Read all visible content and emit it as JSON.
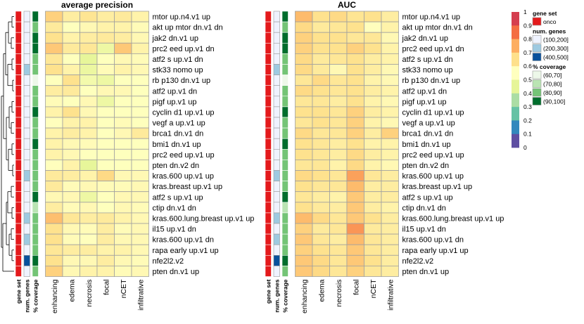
{
  "chart_data": {
    "type": "heatmap",
    "rows": [
      "mtor up.n4.v1 up",
      "akt up mtor dn.v1 dn",
      "jak2 dn.v1 up",
      "prc2 eed up.v1 dn",
      "atf2 s up.v1 dn",
      "stk33 nomo up",
      "rb p130 dn.v1 up",
      "atf2 up.v1 dn",
      "pigf up.v1 up",
      "cyclin d1 up.v1 up",
      "vegf a up.v1 up",
      "brca1 dn.v1 dn",
      "bmi1 dn.v1 up",
      "prc2 eed up.v1 up",
      "pten dn.v2 dn",
      "kras.600 up.v1 up",
      "kras.breast up.v1 up",
      "atf2 s up.v1 up",
      "ctip dn.v1 dn",
      "kras.600.lung.breast up.v1 up",
      "il15 up.v1 dn",
      "kras.600 up.v1 dn",
      "rapa early up.v1 up",
      "nfe2l2.v2",
      "pten dn.v1 up"
    ],
    "columns": [
      "enhancing",
      "edema",
      "necrosis",
      "focal",
      "nCET",
      "infiltrative"
    ],
    "annotation_columns": [
      "gene set",
      "num. genes",
      "% coverage"
    ],
    "annotations": {
      "gene_set": [
        "onco",
        "onco",
        "onco",
        "onco",
        "onco",
        "onco",
        "onco",
        "onco",
        "onco",
        "onco",
        "onco",
        "onco",
        "onco",
        "onco",
        "onco",
        "onco",
        "onco",
        "onco",
        "onco",
        "onco",
        "onco",
        "onco",
        "onco",
        "onco",
        "onco"
      ],
      "num_genes": [
        "(100,200]",
        "(100,200]",
        "(100,200]",
        "(100,200]",
        "(100,200]",
        "(200,300]",
        "(100,200]",
        "(100,200]",
        "(100,200]",
        "(100,200]",
        "(100,200]",
        "(100,200]",
        "(100,200]",
        "(100,200]",
        "(100,200]",
        "(200,300]",
        "(100,200]",
        "(100,200]",
        "(100,200]",
        "(200,300]",
        "(100,200]",
        "(200,300]",
        "(100,200]",
        "(400,500]",
        "(100,200]"
      ],
      "coverage": [
        "(90,100]",
        "(80,90]",
        "(90,100]",
        "(90,100]",
        "(80,90]",
        "(80,90]",
        "(60,70]",
        "(80,90]",
        "(80,90]",
        "(90,100]",
        "(80,90]",
        "(80,90]",
        "(90,100]",
        "(80,90]",
        "(80,90]",
        "(80,90]",
        "(80,90]",
        "(90,100]",
        "(70,80]",
        "(80,90]",
        "(80,90]",
        "(80,90]",
        "(80,90]",
        "(90,100]",
        "(80,90]"
      ]
    },
    "panels": [
      {
        "title": "average precision",
        "values": [
          [
            0.7,
            0.62,
            0.65,
            0.62,
            0.63,
            0.6
          ],
          [
            0.63,
            0.55,
            0.58,
            0.6,
            0.6,
            0.57
          ],
          [
            0.66,
            0.6,
            0.62,
            0.63,
            0.62,
            0.58
          ],
          [
            0.72,
            0.63,
            0.64,
            0.48,
            0.72,
            0.6
          ],
          [
            0.64,
            0.55,
            0.45,
            0.55,
            0.58,
            0.57
          ],
          [
            0.66,
            0.6,
            0.47,
            0.57,
            0.6,
            0.58
          ],
          [
            0.55,
            0.66,
            0.5,
            0.48,
            0.55,
            0.55
          ],
          [
            0.62,
            0.63,
            0.55,
            0.58,
            0.58,
            0.55
          ],
          [
            0.57,
            0.55,
            0.58,
            0.48,
            0.55,
            0.55
          ],
          [
            0.6,
            0.66,
            0.58,
            0.55,
            0.55,
            0.55
          ],
          [
            0.56,
            0.6,
            0.6,
            0.55,
            0.57,
            0.55
          ],
          [
            0.6,
            0.62,
            0.6,
            0.55,
            0.58,
            0.63
          ],
          [
            0.6,
            0.58,
            0.57,
            0.55,
            0.55,
            0.55
          ],
          [
            0.6,
            0.58,
            0.55,
            0.55,
            0.55,
            0.55
          ],
          [
            0.56,
            0.6,
            0.45,
            0.55,
            0.55,
            0.55
          ],
          [
            0.63,
            0.62,
            0.6,
            0.68,
            0.58,
            0.58
          ],
          [
            0.63,
            0.57,
            0.58,
            0.57,
            0.57,
            0.58
          ],
          [
            0.58,
            0.58,
            0.48,
            0.55,
            0.58,
            0.58
          ],
          [
            0.62,
            0.57,
            0.58,
            0.55,
            0.58,
            0.57
          ],
          [
            0.74,
            0.64,
            0.62,
            0.63,
            0.6,
            0.58
          ],
          [
            0.66,
            0.58,
            0.57,
            0.62,
            0.57,
            0.58
          ],
          [
            0.66,
            0.57,
            0.56,
            0.62,
            0.58,
            0.58
          ],
          [
            0.64,
            0.62,
            0.62,
            0.6,
            0.6,
            0.58
          ],
          [
            0.66,
            0.58,
            0.58,
            0.62,
            0.58,
            0.57
          ],
          [
            0.7,
            0.58,
            0.6,
            0.6,
            0.57,
            0.58
          ]
        ]
      },
      {
        "title": "AUC",
        "values": [
          [
            0.75,
            0.66,
            0.68,
            0.65,
            0.66,
            0.62
          ],
          [
            0.68,
            0.63,
            0.64,
            0.66,
            0.56,
            0.6
          ],
          [
            0.7,
            0.66,
            0.66,
            0.64,
            0.64,
            0.58
          ],
          [
            0.7,
            0.66,
            0.66,
            0.7,
            0.66,
            0.6
          ],
          [
            0.68,
            0.63,
            0.64,
            0.66,
            0.62,
            0.6
          ],
          [
            0.68,
            0.63,
            0.58,
            0.66,
            0.62,
            0.58
          ],
          [
            0.64,
            0.68,
            0.64,
            0.66,
            0.6,
            0.58
          ],
          [
            0.68,
            0.66,
            0.64,
            0.66,
            0.62,
            0.6
          ],
          [
            0.64,
            0.64,
            0.62,
            0.66,
            0.6,
            0.58
          ],
          [
            0.66,
            0.66,
            0.64,
            0.7,
            0.62,
            0.6
          ],
          [
            0.64,
            0.66,
            0.64,
            0.7,
            0.6,
            0.58
          ],
          [
            0.68,
            0.64,
            0.64,
            0.7,
            0.62,
            0.7
          ],
          [
            0.66,
            0.64,
            0.62,
            0.66,
            0.6,
            0.6
          ],
          [
            0.66,
            0.64,
            0.62,
            0.68,
            0.62,
            0.6
          ],
          [
            0.64,
            0.64,
            0.6,
            0.68,
            0.6,
            0.58
          ],
          [
            0.68,
            0.66,
            0.64,
            0.8,
            0.64,
            0.62
          ],
          [
            0.66,
            0.64,
            0.64,
            0.75,
            0.62,
            0.62
          ],
          [
            0.64,
            0.62,
            0.6,
            0.72,
            0.62,
            0.62
          ],
          [
            0.66,
            0.63,
            0.62,
            0.72,
            0.62,
            0.6
          ],
          [
            0.75,
            0.68,
            0.64,
            0.72,
            0.66,
            0.62
          ],
          [
            0.7,
            0.63,
            0.64,
            0.82,
            0.63,
            0.62
          ],
          [
            0.72,
            0.64,
            0.62,
            0.75,
            0.64,
            0.62
          ],
          [
            0.7,
            0.66,
            0.64,
            0.72,
            0.64,
            0.62
          ],
          [
            0.72,
            0.68,
            0.64,
            0.72,
            0.66,
            0.62
          ],
          [
            0.72,
            0.68,
            0.64,
            0.7,
            0.64,
            0.62
          ]
        ]
      }
    ],
    "color_scale": {
      "ticks": [
        1,
        0.9,
        0.8,
        0.7,
        0.6,
        0.5,
        0.4,
        0.3,
        0.2,
        0.1,
        0
      ],
      "colors": [
        "#d53e4f",
        "#f46d43",
        "#fdae61",
        "#fee08b",
        "#ffffbf",
        "#e6f598",
        "#abdda4",
        "#66c2a5",
        "#3288bd",
        "#5e4fa2"
      ]
    },
    "legends": {
      "gene_set": {
        "title": "gene set",
        "items": [
          {
            "label": "onco",
            "color": "#e41a1c"
          }
        ]
      },
      "num_genes": {
        "title": "num. genes",
        "items": [
          {
            "label": "(100,200]",
            "color": "#eff3ff"
          },
          {
            "label": "(200,300]",
            "color": "#9ecae1"
          },
          {
            "label": "(400,500]",
            "color": "#08519c"
          }
        ]
      },
      "coverage": {
        "title": "% coverage",
        "items": [
          {
            "label": "(60,70]",
            "color": "#edf8e9"
          },
          {
            "label": "(70,80]",
            "color": "#bae4b3"
          },
          {
            "label": "(80,90]",
            "color": "#74c476"
          },
          {
            "label": "(90,100]",
            "color": "#006d2c"
          }
        ]
      }
    },
    "colors": {
      "cell_border": "#a0a0a0",
      "dendrogram": "#000000"
    }
  }
}
